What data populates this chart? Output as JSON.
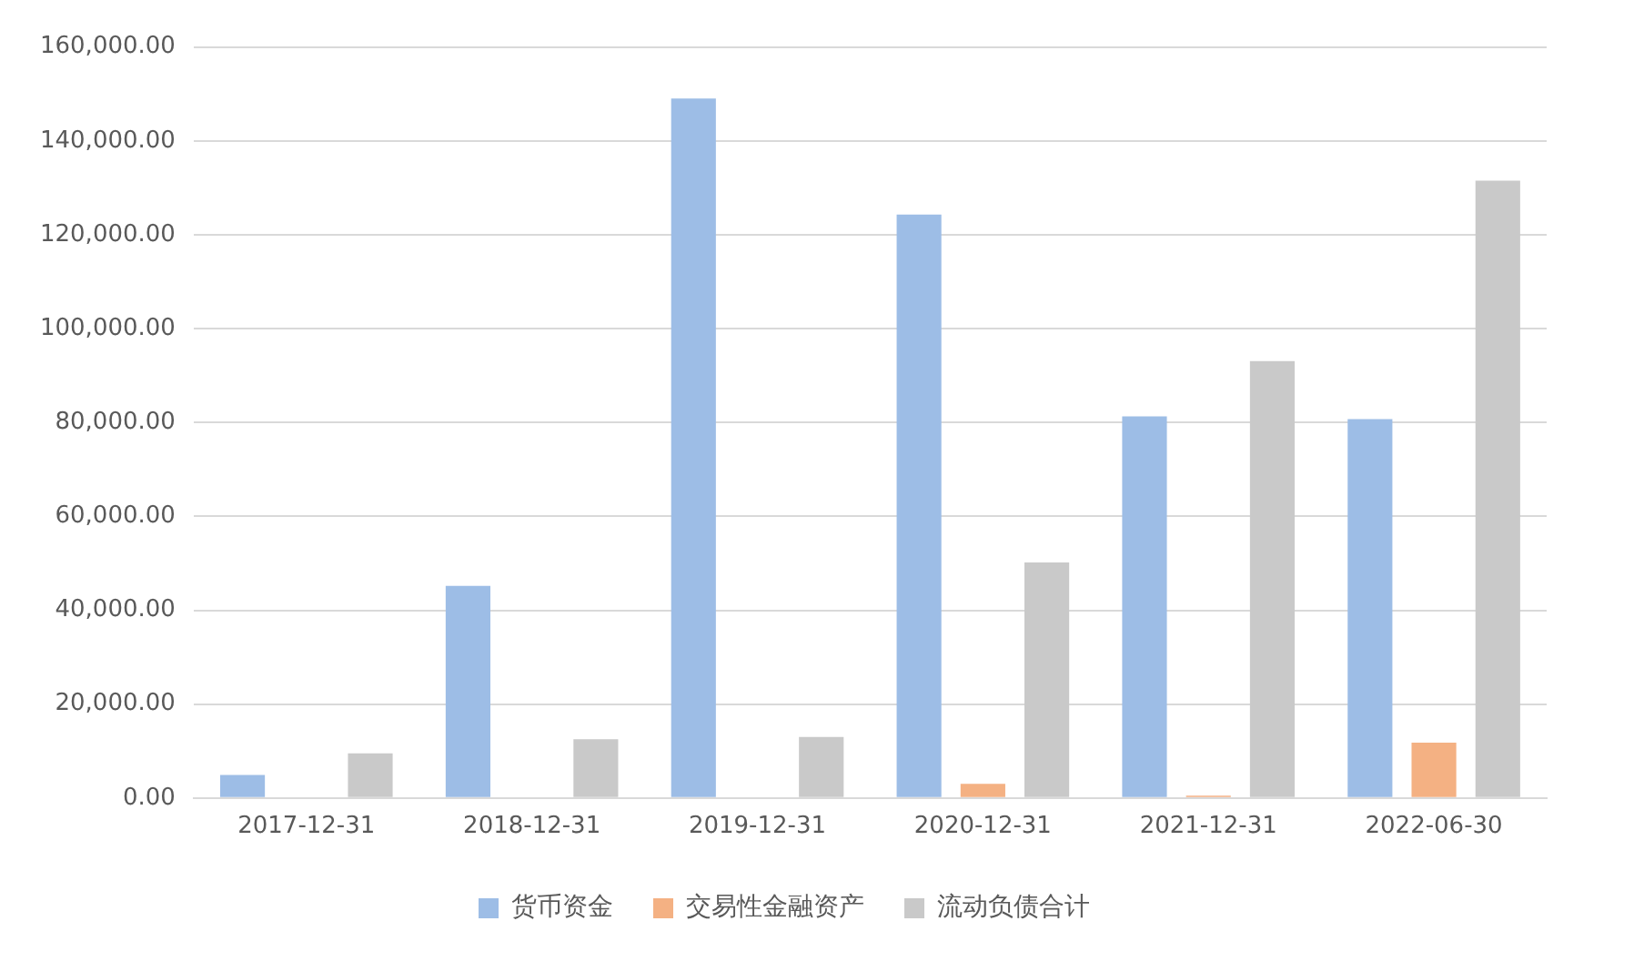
{
  "chart_data": {
    "type": "bar",
    "categories": [
      "2017-12-31",
      "2018-12-31",
      "2019-12-31",
      "2020-12-31",
      "2021-12-31",
      "2022-06-30"
    ],
    "series": [
      {
        "name": "货币资金",
        "color": "#9dbde6",
        "values": [
          4900,
          45200,
          149000,
          124300,
          81300,
          80700
        ]
      },
      {
        "name": "交易性金融资产",
        "color": "#f4b183",
        "values": [
          null,
          null,
          null,
          3000,
          500,
          11800
        ]
      },
      {
        "name": "流动负债合计",
        "color": "#c9c9c9",
        "values": [
          9500,
          12500,
          13000,
          50200,
          93100,
          131500
        ]
      }
    ],
    "ylim": [
      0,
      160000
    ],
    "yticks": [
      {
        "value": 0,
        "label": "0.00"
      },
      {
        "value": 20000,
        "label": "20,000.00"
      },
      {
        "value": 40000,
        "label": "40,000.00"
      },
      {
        "value": 60000,
        "label": "60,000.00"
      },
      {
        "value": 80000,
        "label": "80,000.00"
      },
      {
        "value": 100000,
        "label": "100,000.00"
      },
      {
        "value": 120000,
        "label": "120,000.00"
      },
      {
        "value": 140000,
        "label": "140,000.00"
      },
      {
        "value": 160000,
        "label": "160,000.00"
      }
    ],
    "grid": "y",
    "legend": "bottom"
  }
}
